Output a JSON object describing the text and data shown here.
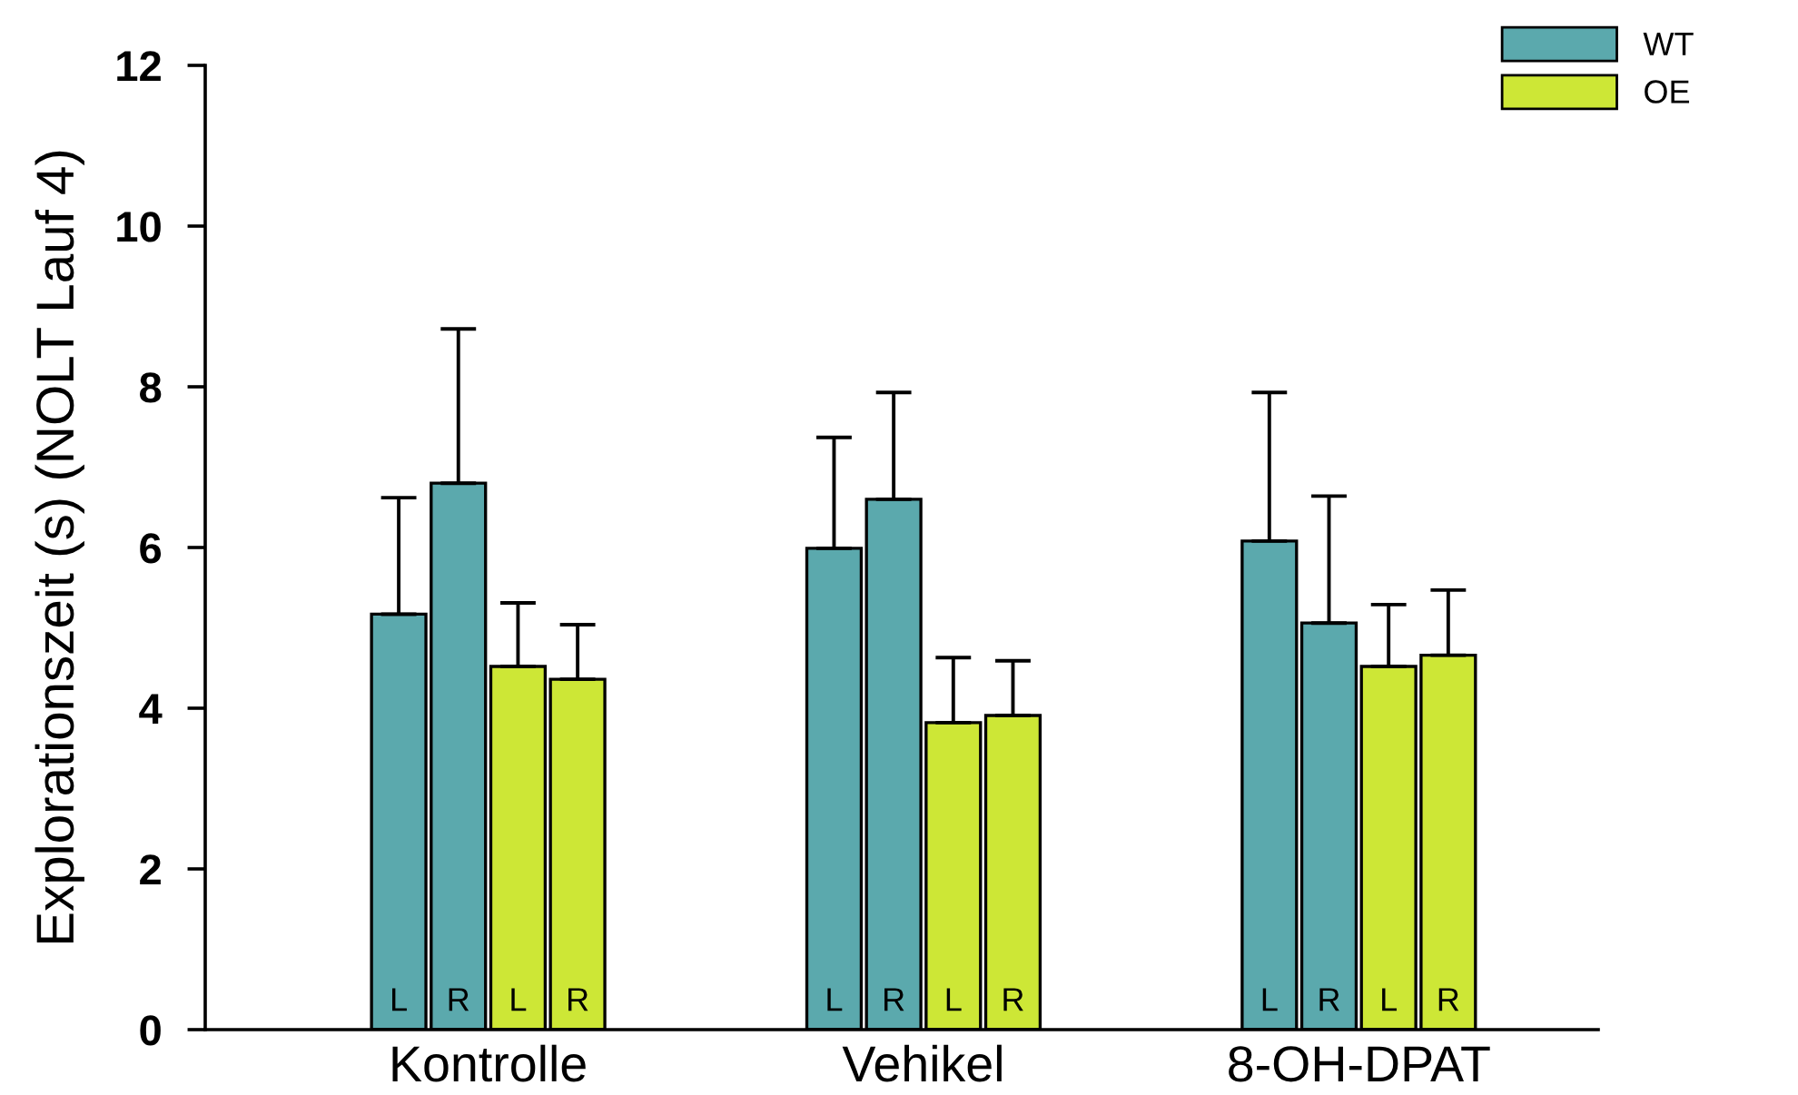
{
  "chart_data": {
    "type": "bar",
    "ylabel": "Explorationszeit (s) (NOLT Lauf 4)",
    "categories": [
      "Kontrolle",
      "Vehikel",
      "8-OH-DPAT"
    ],
    "series": [
      {
        "name": "WT",
        "color": "#5ba9ad",
        "values": [
          5.17,
          5.99,
          6.08
        ],
        "errors": [
          [
            5.17,
            6.62
          ],
          [
            5.99,
            7.37
          ],
          [
            6.08,
            7.93
          ]
        ],
        "value_labels": [
          "L",
          "L",
          "L"
        ]
      },
      {
        "color": "#5ba9ad",
        "values": [
          6.8,
          6.6,
          5.06
        ],
        "errors": [
          [
            6.8,
            8.72
          ],
          [
            6.6,
            7.93
          ],
          [
            5.06,
            6.64
          ]
        ],
        "value_labels": [
          "R",
          "R",
          "R"
        ]
      },
      {
        "name": "OE",
        "color": "#cde736",
        "values": [
          4.52,
          3.82,
          4.52
        ],
        "errors": [
          [
            4.52,
            5.31
          ],
          [
            3.82,
            4.63
          ],
          [
            4.52,
            5.29
          ]
        ],
        "value_labels": [
          "L",
          "L",
          "L"
        ]
      },
      {
        "color": "#cde736",
        "values": [
          4.36,
          3.91,
          4.66
        ],
        "errors": [
          [
            4.36,
            5.04
          ],
          [
            3.91,
            4.59
          ],
          [
            4.66,
            5.47
          ]
        ],
        "value_labels": [
          "R",
          "R",
          "R"
        ]
      }
    ],
    "ylim": [
      0,
      12
    ],
    "yticks": [
      0,
      2,
      4,
      6,
      8,
      10,
      12
    ],
    "grid": false,
    "legend": "top right"
  }
}
